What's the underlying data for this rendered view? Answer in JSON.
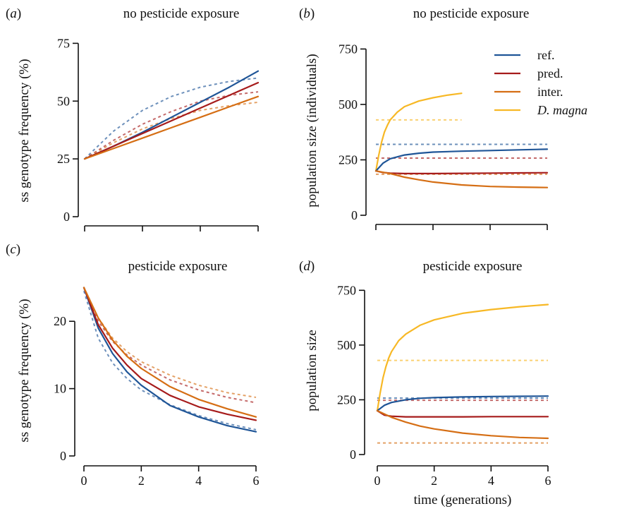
{
  "colors": {
    "ref": "#1f5597",
    "pred": "#a61b1b",
    "inter": "#d56e14",
    "dmagna": "#f7b825"
  },
  "legend": [
    {
      "key": "ref",
      "label": "ref.",
      "italic": false
    },
    {
      "key": "pred",
      "label": "pred.",
      "italic": false
    },
    {
      "key": "inter",
      "label": "inter.",
      "italic": false
    },
    {
      "key": "dmagna",
      "label": "D. magna",
      "italic": true
    }
  ],
  "chart_data": [
    {
      "panel": "(a)",
      "panel_letter": "a",
      "type": "line",
      "title": "no pesticide exposure",
      "xlabel": "",
      "ylabel": "ss genotype frequency (%)",
      "xlim": [
        0,
        6
      ],
      "ylim": [
        0,
        80
      ],
      "xticks": [
        0,
        2,
        4,
        6
      ],
      "xtick_labels": [
        "",
        "",
        "",
        ""
      ],
      "yticks": [
        0,
        25,
        50,
        75
      ],
      "yticks_labels": [
        "0",
        "25",
        "50",
        "75"
      ],
      "series": [
        {
          "key": "ref",
          "style": "solid",
          "x": [
            0,
            1,
            2,
            3,
            4,
            5,
            6
          ],
          "y": [
            25,
            30.5,
            36.5,
            43,
            49.5,
            56,
            63
          ]
        },
        {
          "key": "pred",
          "style": "solid",
          "x": [
            0,
            1,
            2,
            3,
            4,
            5,
            6
          ],
          "y": [
            25,
            30.5,
            36,
            41.5,
            47,
            52.5,
            58
          ]
        },
        {
          "key": "inter",
          "style": "solid",
          "x": [
            0,
            1,
            2,
            3,
            4,
            5,
            6
          ],
          "y": [
            25,
            29.5,
            34,
            38.5,
            43,
            47.5,
            52
          ]
        },
        {
          "key": "ref",
          "style": "dashed",
          "x": [
            0,
            1,
            2,
            3,
            4,
            5,
            6
          ],
          "y": [
            25,
            37,
            46,
            52,
            56,
            58.5,
            60
          ]
        },
        {
          "key": "pred",
          "style": "dashed",
          "x": [
            0,
            1,
            2,
            3,
            4,
            5,
            6
          ],
          "y": [
            25,
            33,
            40,
            45.5,
            50,
            52.5,
            54
          ]
        },
        {
          "key": "inter",
          "style": "dashed",
          "x": [
            0,
            1,
            2,
            3,
            4,
            5,
            6
          ],
          "y": [
            25,
            32,
            38,
            42.5,
            46,
            48,
            49.5
          ]
        }
      ]
    },
    {
      "panel": "(b)",
      "panel_letter": "b",
      "type": "line",
      "title": "no pesticide exposure",
      "xlabel": "",
      "ylabel": "population size (individuals)",
      "xlim": [
        0,
        6
      ],
      "ylim": [
        0,
        780
      ],
      "xticks": [
        0,
        2,
        4,
        6
      ],
      "xtick_labels": [
        "",
        "",
        "",
        ""
      ],
      "yticks": [
        0,
        250,
        500,
        750
      ],
      "yticks_labels": [
        "0",
        "250",
        "500",
        "750"
      ],
      "series": [
        {
          "key": "dmagna",
          "style": "solid",
          "x": [
            0,
            0.1,
            0.2,
            0.3,
            0.4,
            0.5,
            0.75,
            1,
            1.5,
            2,
            2.5,
            3
          ],
          "y": [
            200,
            270,
            330,
            375,
            405,
            430,
            465,
            490,
            515,
            530,
            542,
            550
          ]
        },
        {
          "key": "ref",
          "style": "solid",
          "x": [
            0,
            0.25,
            0.5,
            1,
            1.5,
            2,
            3,
            4,
            5,
            6
          ],
          "y": [
            200,
            235,
            255,
            272,
            280,
            285,
            289,
            292,
            295,
            298
          ]
        },
        {
          "key": "pred",
          "style": "solid",
          "x": [
            0,
            0.25,
            0.5,
            1,
            2,
            3,
            4,
            5,
            6
          ],
          "y": [
            200,
            193,
            190,
            188,
            188,
            189,
            190,
            191,
            192
          ]
        },
        {
          "key": "inter",
          "style": "solid",
          "x": [
            0,
            0.5,
            1,
            1.5,
            2,
            3,
            4,
            5,
            6
          ],
          "y": [
            200,
            188,
            172,
            160,
            150,
            137,
            130,
            127,
            125
          ]
        },
        {
          "key": "dmagna",
          "style": "dashed",
          "x": [
            0,
            3
          ],
          "y": [
            430,
            430
          ]
        },
        {
          "key": "ref",
          "style": "dashed",
          "x": [
            0,
            6
          ],
          "y": [
            320,
            320
          ]
        },
        {
          "key": "pred",
          "style": "dashed",
          "x": [
            0,
            6
          ],
          "y": [
            258,
            258
          ]
        },
        {
          "key": "inter",
          "style": "dashed",
          "x": [
            0,
            6
          ],
          "y": [
            185,
            185
          ]
        }
      ]
    },
    {
      "panel": "(c)",
      "panel_letter": "c",
      "type": "line",
      "title": "pesticide exposure",
      "xlabel": "",
      "ylabel": "ss genotype frequency (%)",
      "xlim": [
        0,
        6
      ],
      "ylim": [
        0,
        26
      ],
      "xticks": [
        0,
        2,
        4,
        6
      ],
      "xtick_labels": [
        "0",
        "2",
        "4",
        "6"
      ],
      "yticks": [
        0,
        10,
        20
      ],
      "yticks_labels": [
        "0",
        "10",
        "20"
      ],
      "series": [
        {
          "key": "ref",
          "style": "solid",
          "x": [
            0,
            0.5,
            1,
            1.5,
            2,
            3,
            4,
            5,
            6
          ],
          "y": [
            25,
            19,
            15.2,
            12.5,
            10.5,
            7.5,
            5.8,
            4.5,
            3.6
          ]
        },
        {
          "key": "pred",
          "style": "solid",
          "x": [
            0,
            0.5,
            1,
            1.5,
            2,
            3,
            4,
            5,
            6
          ],
          "y": [
            25,
            19.5,
            16,
            13.5,
            11.5,
            9,
            7.3,
            6.2,
            5.3
          ]
        },
        {
          "key": "inter",
          "style": "solid",
          "x": [
            0,
            0.5,
            1,
            1.5,
            2,
            3,
            4,
            5,
            6
          ],
          "y": [
            25,
            20.5,
            17.2,
            14.8,
            13,
            10.3,
            8.4,
            7,
            5.8
          ]
        },
        {
          "key": "ref",
          "style": "dashed",
          "x": [
            0,
            0.5,
            1,
            1.5,
            2,
            3,
            4,
            5,
            6
          ],
          "y": [
            24.5,
            17.5,
            13.8,
            11.5,
            9.8,
            7.6,
            6,
            4.8,
            3.9
          ]
        },
        {
          "key": "pred",
          "style": "dashed",
          "x": [
            0,
            0.5,
            1,
            1.5,
            2,
            3,
            4,
            5,
            6
          ],
          "y": [
            25,
            20,
            17,
            15,
            13.5,
            11.3,
            9.8,
            8.7,
            7.9
          ]
        },
        {
          "key": "inter",
          "style": "dashed",
          "x": [
            0,
            0.5,
            1,
            1.5,
            2,
            3,
            4,
            5,
            6
          ],
          "y": [
            25,
            20.5,
            17.5,
            15.5,
            14,
            12,
            10.5,
            9.4,
            8.7
          ]
        }
      ]
    },
    {
      "panel": "(d)",
      "panel_letter": "d",
      "type": "line",
      "title": "pesticide exposure",
      "xlabel": "time (generations)",
      "ylabel": "population size",
      "xlim": [
        0,
        6
      ],
      "ylim": [
        0,
        780
      ],
      "xticks": [
        0,
        2,
        4,
        6
      ],
      "xtick_labels": [
        "0",
        "2",
        "4",
        "6"
      ],
      "yticks": [
        0,
        250,
        500,
        750
      ],
      "yticks_labels": [
        "0",
        "250",
        "500",
        "750"
      ],
      "series": [
        {
          "key": "dmagna",
          "style": "solid",
          "x": [
            0,
            0.1,
            0.2,
            0.3,
            0.4,
            0.5,
            0.75,
            1,
            1.5,
            2,
            3,
            4,
            5,
            6
          ],
          "y": [
            200,
            280,
            350,
            400,
            440,
            470,
            520,
            550,
            590,
            615,
            645,
            662,
            675,
            685
          ]
        },
        {
          "key": "ref",
          "style": "solid",
          "x": [
            0,
            0.25,
            0.5,
            1,
            1.5,
            2,
            3,
            4,
            5,
            6
          ],
          "y": [
            200,
            225,
            238,
            250,
            257,
            260,
            263,
            265,
            266,
            267
          ]
        },
        {
          "key": "pred",
          "style": "solid",
          "x": [
            0,
            0.25,
            0.5,
            1,
            2,
            3,
            4,
            5,
            6
          ],
          "y": [
            200,
            180,
            175,
            172,
            172,
            172,
            173,
            173,
            173
          ]
        },
        {
          "key": "inter",
          "style": "solid",
          "x": [
            0,
            0.5,
            1,
            1.5,
            2,
            3,
            4,
            5,
            6
          ],
          "y": [
            200,
            170,
            148,
            130,
            117,
            98,
            86,
            78,
            74
          ]
        },
        {
          "key": "dmagna",
          "style": "dashed",
          "x": [
            0,
            6
          ],
          "y": [
            430,
            430
          ]
        },
        {
          "key": "ref",
          "style": "dashed",
          "x": [
            0,
            6
          ],
          "y": [
            258,
            258
          ]
        },
        {
          "key": "pred",
          "style": "dashed",
          "x": [
            0,
            6
          ],
          "y": [
            248,
            248
          ]
        },
        {
          "key": "inter",
          "style": "dashed",
          "x": [
            0,
            6
          ],
          "y": [
            53,
            53
          ]
        }
      ]
    }
  ]
}
